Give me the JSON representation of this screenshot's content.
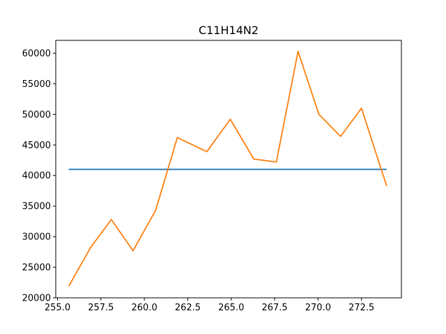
{
  "chart_data": {
    "type": "line",
    "title": "C11H14N2",
    "xlabel": "",
    "ylabel": "",
    "xlim": [
      254.9,
      274.8
    ],
    "ylim": [
      20000,
      62100
    ],
    "grid": false,
    "x_ticks": [
      255.0,
      257.5,
      260.0,
      262.5,
      265.0,
      267.5,
      270.0,
      272.5
    ],
    "x_tick_labels": [
      "255.0",
      "257.5",
      "260.0",
      "262.5",
      "265.0",
      "267.5",
      "270.0",
      "272.5"
    ],
    "y_ticks": [
      20000,
      25000,
      30000,
      35000,
      40000,
      45000,
      50000,
      55000,
      60000
    ],
    "y_tick_labels": [
      "20000",
      "25000",
      "30000",
      "35000",
      "40000",
      "45000",
      "50000",
      "55000",
      "60000"
    ],
    "series": [
      {
        "color": "#1f77b4",
        "x": [
          255.65,
          273.95
        ],
        "y": [
          41000,
          41000
        ]
      },
      {
        "color": "#ff7f0e",
        "x": [
          255.65,
          256.9,
          258.1,
          259.35,
          260.65,
          261.9,
          263.6,
          264.95,
          266.3,
          267.6,
          268.85,
          270.05,
          271.3,
          272.5,
          273.95
        ],
        "y": [
          21900,
          28200,
          32800,
          27700,
          34300,
          46200,
          43900,
          49200,
          42700,
          42200,
          60300,
          50000,
          46400,
          51000,
          38300
        ]
      }
    ]
  }
}
